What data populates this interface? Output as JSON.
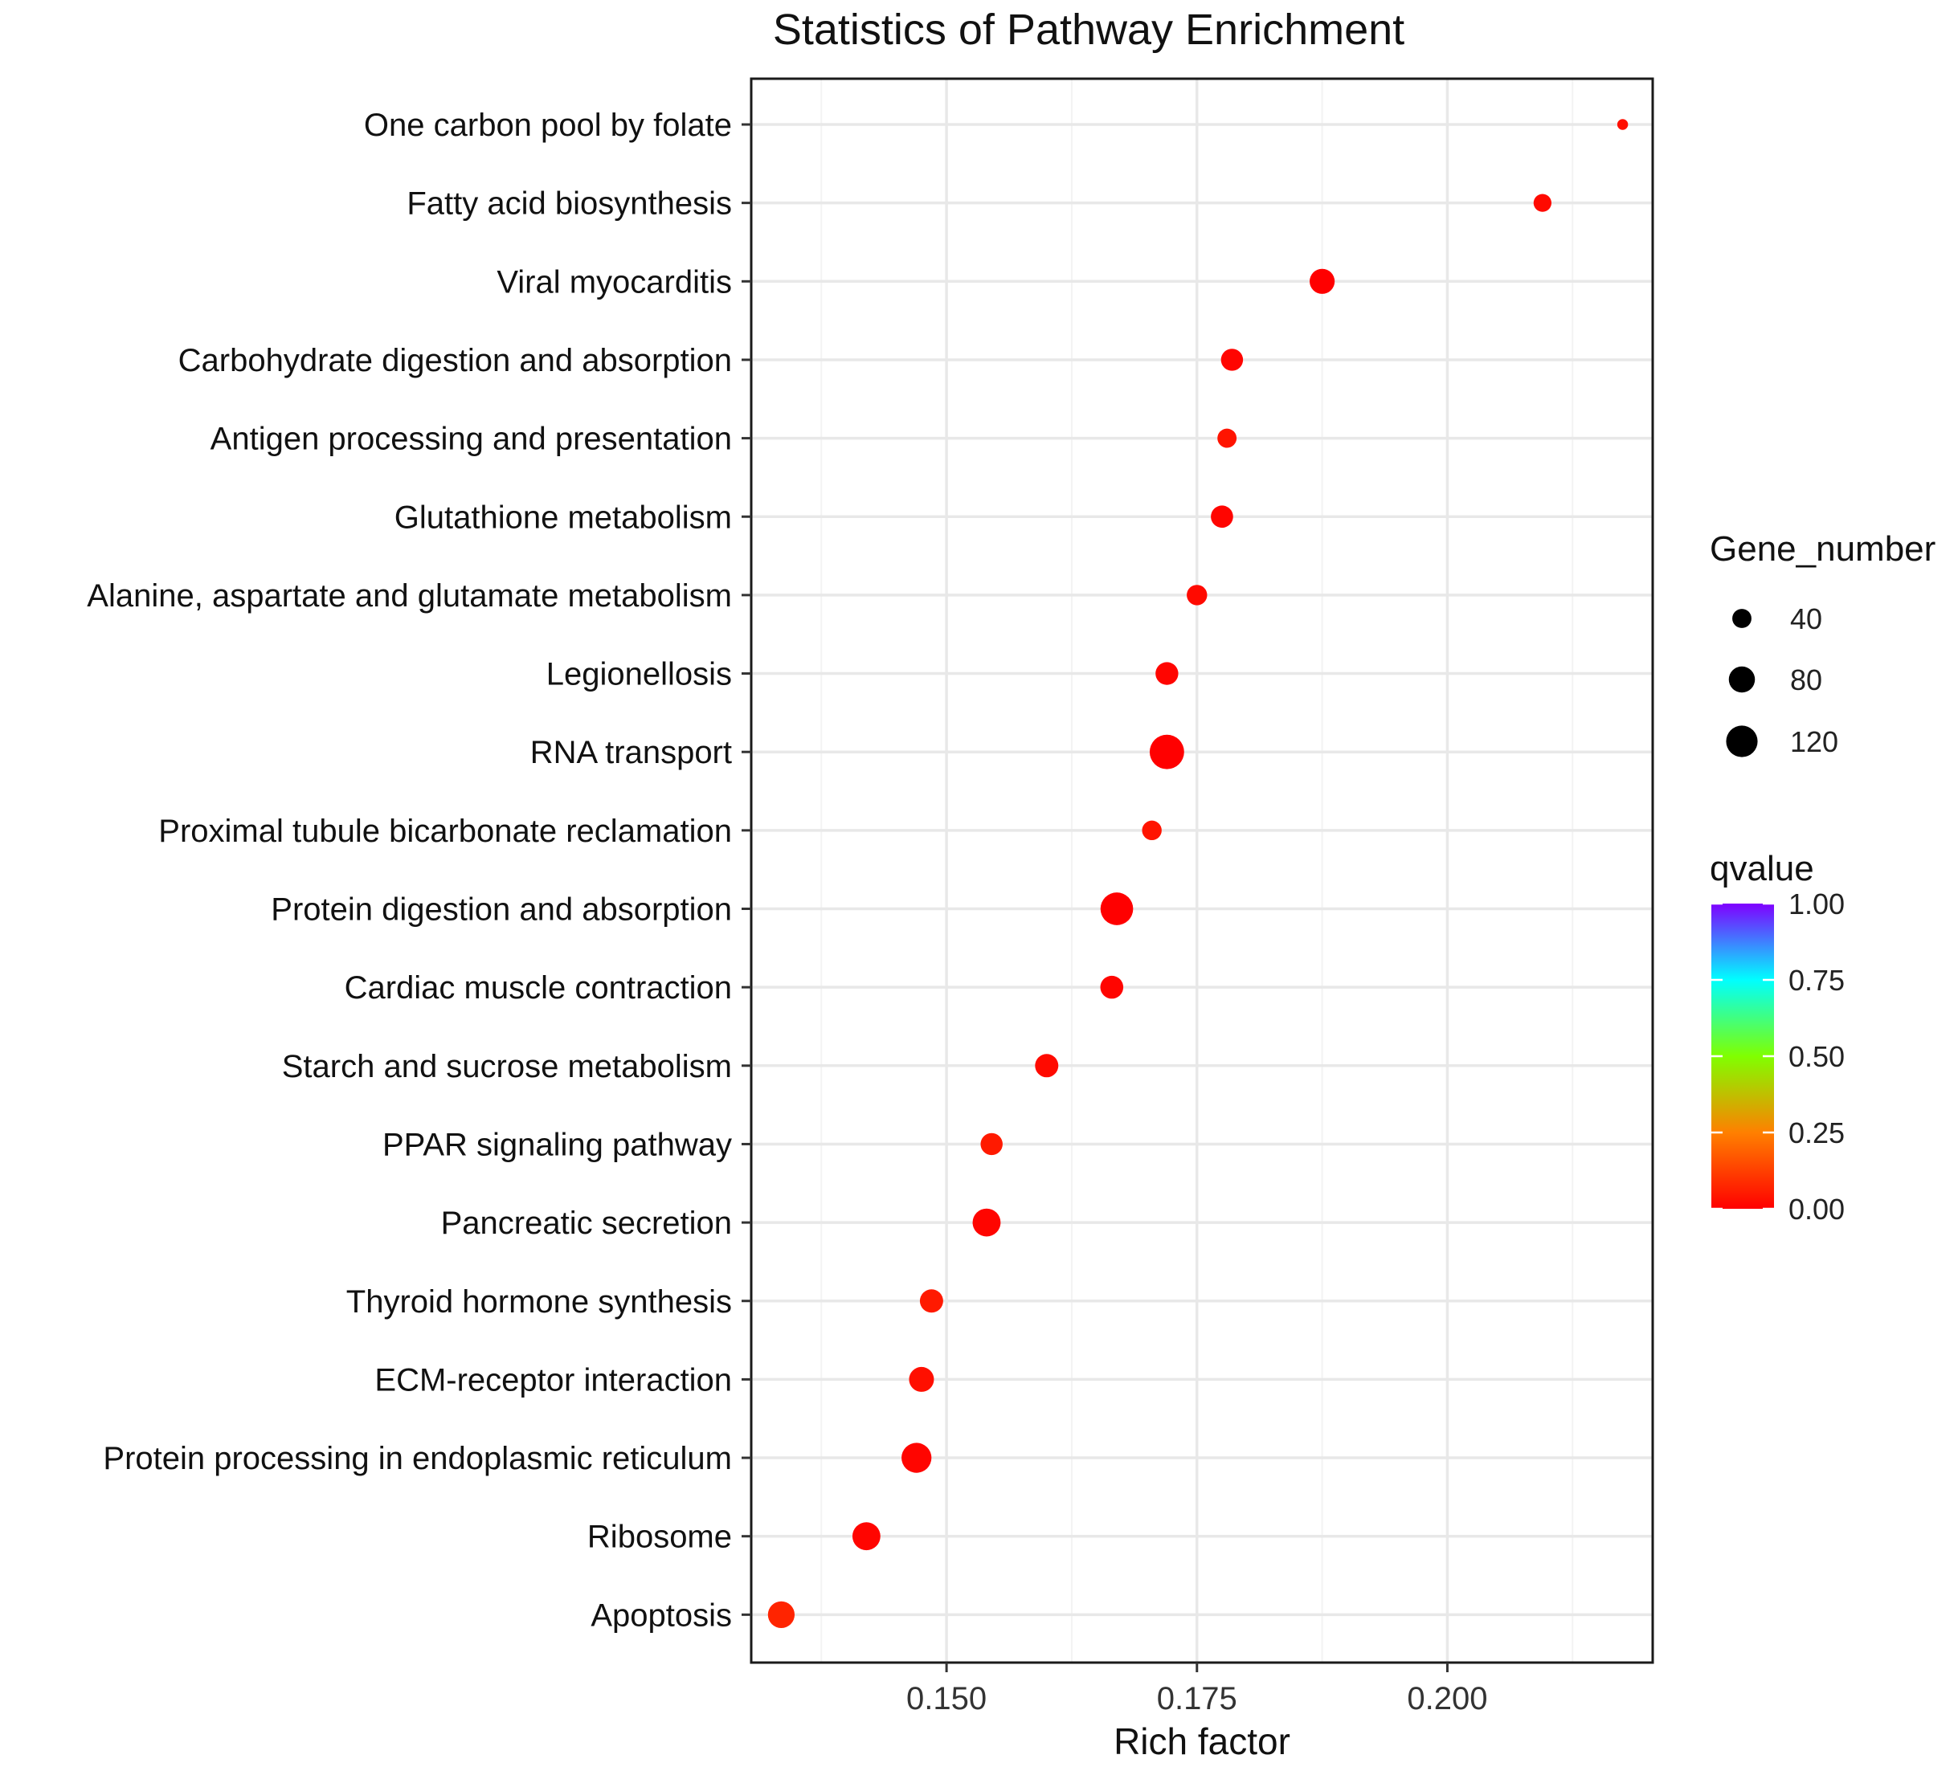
{
  "chart_data": {
    "type": "scatter",
    "title": "Statistics of Pathway Enrichment",
    "xlabel": "Rich factor",
    "ylabel": "",
    "xlim": [
      0.1305,
      0.2205
    ],
    "xticks": [
      0.15,
      0.175,
      0.2
    ],
    "xtick_labels": [
      "0.150",
      "0.175",
      "0.200"
    ],
    "grid": true,
    "points": [
      {
        "pathway": "One carbon pool by folate",
        "rich_factor": 0.2175,
        "gene_number": 10,
        "qvalue": 0.03
      },
      {
        "pathway": "Fatty acid biosynthesis",
        "rich_factor": 0.2095,
        "gene_number": 34,
        "qvalue": 0.02
      },
      {
        "pathway": "Viral myocarditis",
        "rich_factor": 0.1875,
        "gene_number": 73,
        "qvalue": 0.0
      },
      {
        "pathway": "Carbohydrate digestion and absorption",
        "rich_factor": 0.1785,
        "gene_number": 55,
        "qvalue": 0.01
      },
      {
        "pathway": "Antigen processing and presentation",
        "rich_factor": 0.178,
        "gene_number": 40,
        "qvalue": 0.04
      },
      {
        "pathway": "Glutathione metabolism",
        "rich_factor": 0.1775,
        "gene_number": 56,
        "qvalue": 0.01
      },
      {
        "pathway": "Alanine, aspartate and glutamate metabolism",
        "rich_factor": 0.175,
        "gene_number": 46,
        "qvalue": 0.02
      },
      {
        "pathway": "Legionellosis",
        "rich_factor": 0.172,
        "gene_number": 59,
        "qvalue": 0.01
      },
      {
        "pathway": "RNA transport",
        "rich_factor": 0.172,
        "gene_number": 146,
        "qvalue": 0.0
      },
      {
        "pathway": "Proximal tubule bicarbonate reclamation",
        "rich_factor": 0.1705,
        "gene_number": 42,
        "qvalue": 0.04
      },
      {
        "pathway": "Protein digestion and absorption",
        "rich_factor": 0.167,
        "gene_number": 130,
        "qvalue": 0.0
      },
      {
        "pathway": "Cardiac muscle contraction",
        "rich_factor": 0.1665,
        "gene_number": 60,
        "qvalue": 0.01
      },
      {
        "pathway": "Starch and sucrose metabolism",
        "rich_factor": 0.16,
        "gene_number": 62,
        "qvalue": 0.02
      },
      {
        "pathway": "PPAR signaling pathway",
        "rich_factor": 0.1545,
        "gene_number": 55,
        "qvalue": 0.05
      },
      {
        "pathway": "Pancreatic secretion",
        "rich_factor": 0.154,
        "gene_number": 93,
        "qvalue": 0.01
      },
      {
        "pathway": "Thyroid hormone synthesis",
        "rich_factor": 0.1485,
        "gene_number": 62,
        "qvalue": 0.05
      },
      {
        "pathway": "ECM-receptor interaction",
        "rich_factor": 0.1475,
        "gene_number": 72,
        "qvalue": 0.03
      },
      {
        "pathway": "Protein processing in endoplasmic reticulum",
        "rich_factor": 0.147,
        "gene_number": 108,
        "qvalue": 0.01
      },
      {
        "pathway": "Ribosome",
        "rich_factor": 0.142,
        "gene_number": 93,
        "qvalue": 0.01
      },
      {
        "pathway": "Apoptosis",
        "rich_factor": 0.1335,
        "gene_number": 84,
        "qvalue": 0.07
      }
    ],
    "size_legend": {
      "title": "Gene_number",
      "values": [
        40,
        80,
        120
      ],
      "labels": [
        "40",
        "80",
        "120"
      ]
    },
    "color_legend": {
      "title": "qvalue",
      "range": [
        0,
        1
      ],
      "ticks": [
        1.0,
        0.75,
        0.5,
        0.25,
        0.0
      ],
      "labels": [
        "1.00",
        "0.75",
        "0.50",
        "0.25",
        "0.00"
      ],
      "colors": [
        "#ff0000",
        "#ff8000",
        "#80ff00",
        "#00ffff",
        "#7f00ff"
      ]
    }
  }
}
